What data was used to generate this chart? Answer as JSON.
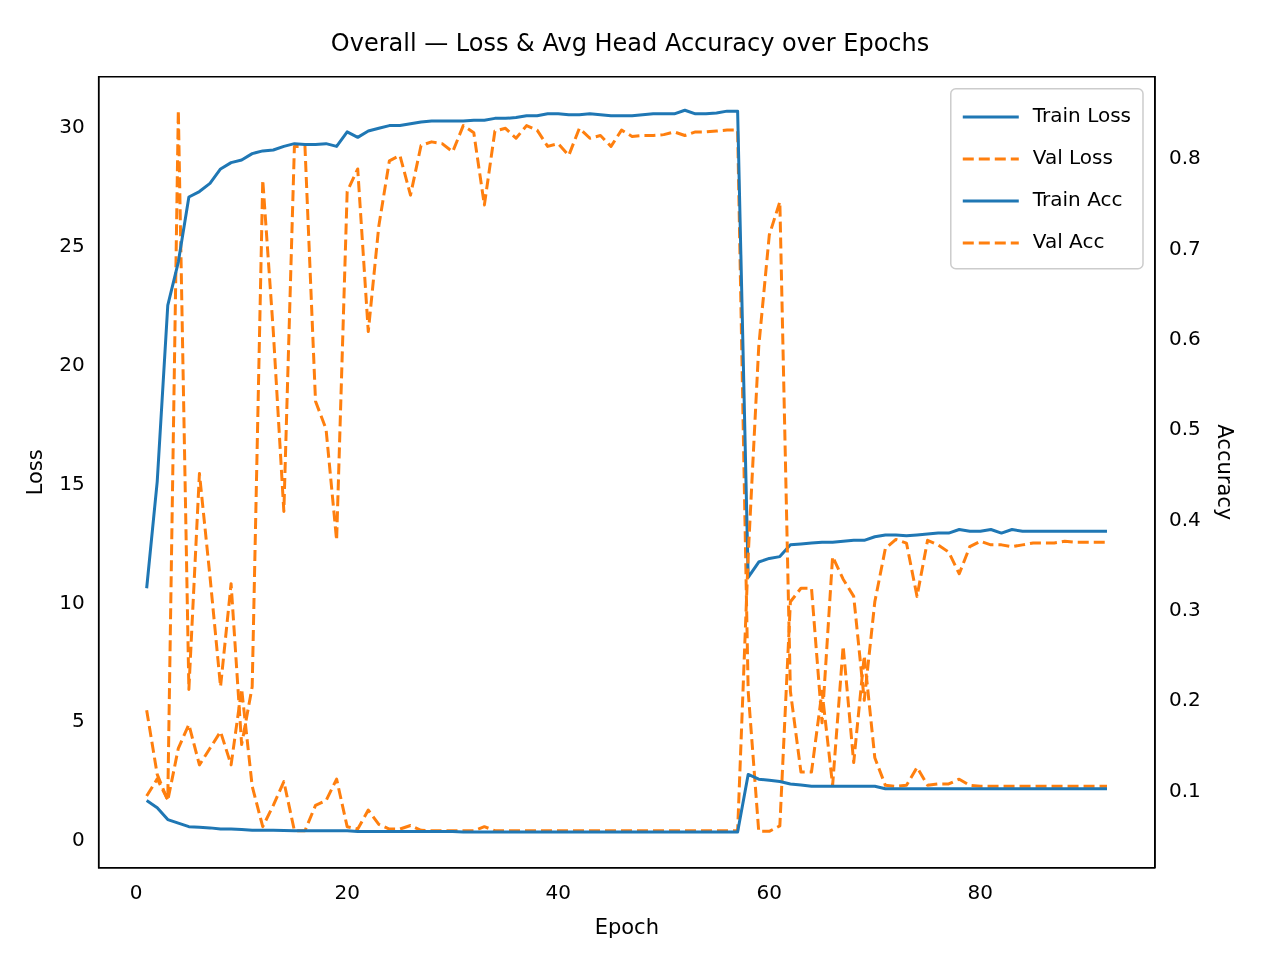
{
  "chart_data": {
    "type": "line",
    "title": "Overall — Loss & Avg Head Accuracy over Epochs",
    "xlabel": "Epoch",
    "ylabel": "Loss",
    "y2label": "Accuracy",
    "x": [
      1,
      2,
      3,
      4,
      5,
      6,
      7,
      8,
      9,
      10,
      11,
      12,
      13,
      14,
      15,
      16,
      17,
      18,
      19,
      20,
      21,
      22,
      23,
      24,
      25,
      26,
      27,
      28,
      29,
      30,
      31,
      32,
      33,
      34,
      35,
      36,
      37,
      38,
      39,
      40,
      41,
      42,
      43,
      44,
      45,
      46,
      47,
      48,
      49,
      50,
      51,
      52,
      53,
      54,
      55,
      56,
      57,
      58,
      59,
      60,
      61,
      62,
      63,
      64,
      65,
      66,
      67,
      68,
      69,
      70,
      71,
      72,
      73,
      74,
      75,
      76,
      77,
      78,
      79,
      80,
      81,
      82,
      83,
      84,
      85,
      86,
      87,
      88,
      89,
      90,
      91,
      92
    ],
    "xlim": [
      -3.55,
      96.55
    ],
    "xticks": [
      0,
      20,
      40,
      60,
      80
    ],
    "ylim": [
      -1.13,
      32.16
    ],
    "yticks": [
      0,
      5,
      10,
      15,
      20,
      25,
      30
    ],
    "y2lim": [
      0.0156,
      0.891
    ],
    "y2ticks": [
      0.1,
      0.2,
      0.3,
      0.4,
      0.5,
      0.6,
      0.7,
      0.8
    ],
    "grid": false,
    "legend": "top right",
    "series": [
      {
        "name": "Train Loss",
        "color": "#1f77b4",
        "line_style": "solid",
        "values": [
          1.7,
          1.4,
          0.9,
          0.75,
          0.6,
          0.58,
          0.55,
          0.5,
          0.5,
          0.48,
          0.45,
          0.45,
          0.45,
          0.44,
          0.43,
          0.43,
          0.43,
          0.43,
          0.43,
          0.43,
          0.4,
          0.4,
          0.4,
          0.4,
          0.4,
          0.4,
          0.4,
          0.4,
          0.4,
          0.4,
          0.38,
          0.38,
          0.38,
          0.38,
          0.38,
          0.38,
          0.38,
          0.38,
          0.38,
          0.38,
          0.38,
          0.38,
          0.38,
          0.38,
          0.38,
          0.38,
          0.38,
          0.38,
          0.38,
          0.38,
          0.38,
          0.38,
          0.38,
          0.38,
          0.38,
          0.38,
          0.38,
          2.8,
          2.6,
          2.55,
          2.5,
          2.4,
          2.35,
          2.3,
          2.3,
          2.3,
          2.3,
          2.3,
          2.3,
          2.3,
          2.2,
          2.2,
          2.2,
          2.2,
          2.2,
          2.2,
          2.2,
          2.2,
          2.2,
          2.2,
          2.2,
          2.2,
          2.2,
          2.2,
          2.2,
          2.2,
          2.2,
          2.2,
          2.2,
          2.2,
          2.2,
          2.2
        ]
      },
      {
        "name": "Val Loss",
        "color": "#ff7f0e",
        "line_style": "dashed",
        "values": [
          5.5,
          2.8,
          1.7,
          3.9,
          4.9,
          3.2,
          3.9,
          4.6,
          3.2,
          6.4,
          2.3,
          0.6,
          1.5,
          2.5,
          0.43,
          0.43,
          1.5,
          1.7,
          2.6,
          0.6,
          0.5,
          1.3,
          0.7,
          0.5,
          0.5,
          0.65,
          0.45,
          0.43,
          0.43,
          0.43,
          0.43,
          0.43,
          0.6,
          0.43,
          0.43,
          0.43,
          0.43,
          0.43,
          0.43,
          0.43,
          0.43,
          0.43,
          0.43,
          0.43,
          0.43,
          0.43,
          0.43,
          0.43,
          0.43,
          0.43,
          0.43,
          0.43,
          0.43,
          0.43,
          0.43,
          0.43,
          0.43,
          12.0,
          20.8,
          25.5,
          26.9,
          6.3,
          2.9,
          2.9,
          6.3,
          2.34,
          8.2,
          3.3,
          7.8,
          3.5,
          2.34,
          2.3,
          2.34,
          3.1,
          2.34,
          2.4,
          2.4,
          2.6,
          2.34,
          2.3,
          2.3,
          2.3,
          2.3,
          2.3,
          2.3,
          2.3,
          2.3,
          2.3,
          2.3,
          2.3,
          2.3,
          2.3
        ]
      },
      {
        "name": "Train Acc",
        "color": "#1f77b4",
        "line_style": "solid",
        "axis": "y2",
        "values": [
          0.325,
          0.443,
          0.638,
          0.686,
          0.758,
          0.764,
          0.773,
          0.789,
          0.796,
          0.799,
          0.806,
          0.809,
          0.81,
          0.814,
          0.817,
          0.816,
          0.816,
          0.817,
          0.814,
          0.83,
          0.824,
          0.831,
          0.834,
          0.837,
          0.837,
          0.839,
          0.841,
          0.842,
          0.842,
          0.842,
          0.842,
          0.843,
          0.843,
          0.845,
          0.845,
          0.846,
          0.848,
          0.848,
          0.85,
          0.85,
          0.849,
          0.849,
          0.85,
          0.849,
          0.848,
          0.848,
          0.848,
          0.849,
          0.85,
          0.85,
          0.85,
          0.854,
          0.85,
          0.85,
          0.851,
          0.853,
          0.853,
          0.337,
          0.354,
          0.358,
          0.36,
          0.373,
          0.374,
          0.375,
          0.376,
          0.376,
          0.377,
          0.378,
          0.378,
          0.382,
          0.384,
          0.384,
          0.383,
          0.384,
          0.385,
          0.386,
          0.386,
          0.39,
          0.388,
          0.388,
          0.39,
          0.386,
          0.39,
          0.388,
          0.388,
          0.388,
          0.388,
          0.388,
          0.388,
          0.388,
          0.388,
          0.388
        ]
      },
      {
        "name": "Val Acc",
        "color": "#ff7f0e",
        "line_style": "dashed",
        "axis": "y2",
        "values": [
          0.095,
          0.114,
          0.091,
          0.854,
          0.213,
          0.452,
          0.338,
          0.216,
          0.33,
          0.152,
          0.216,
          0.777,
          0.609,
          0.41,
          0.814,
          0.814,
          0.532,
          0.501,
          0.378,
          0.764,
          0.789,
          0.609,
          0.726,
          0.798,
          0.804,
          0.76,
          0.815,
          0.819,
          0.817,
          0.808,
          0.837,
          0.829,
          0.749,
          0.831,
          0.834,
          0.823,
          0.837,
          0.832,
          0.814,
          0.817,
          0.804,
          0.834,
          0.823,
          0.826,
          0.814,
          0.832,
          0.825,
          0.826,
          0.826,
          0.827,
          0.83,
          0.826,
          0.83,
          0.83,
          0.831,
          0.832,
          0.832,
          0.211,
          0.056,
          0.056,
          0.062,
          0.31,
          0.325,
          0.325,
          0.176,
          0.36,
          0.335,
          0.316,
          0.201,
          0.31,
          0.369,
          0.379,
          0.375,
          0.316,
          0.378,
          0.373,
          0.365,
          0.341,
          0.371,
          0.377,
          0.373,
          0.373,
          0.371,
          0.373,
          0.375,
          0.375,
          0.375,
          0.377,
          0.376,
          0.376,
          0.376,
          0.376
        ]
      }
    ]
  }
}
